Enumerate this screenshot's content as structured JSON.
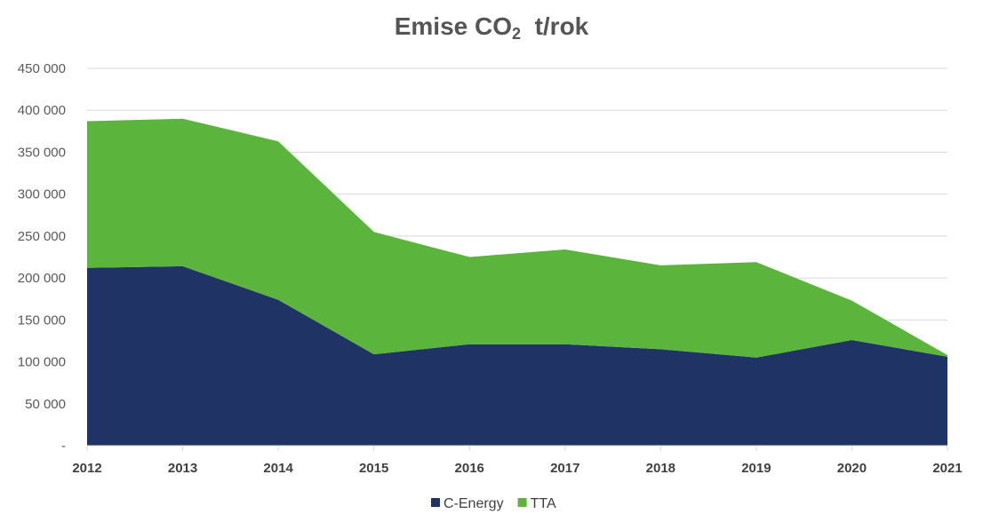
{
  "chart_data": {
    "type": "area",
    "stacked": true,
    "title": {
      "main": "Emise CO",
      "sub": "2",
      "suffix": "t/rok"
    },
    "xlabel": "",
    "ylabel": "",
    "x": [
      "2012",
      "2013",
      "2014",
      "2015",
      "2016",
      "2017",
      "2018",
      "2019",
      "2020",
      "2021"
    ],
    "y_ticks": [
      "-",
      "50 000",
      "100 000",
      "150 000",
      "200 000",
      "250 000",
      "300 000",
      "350 000",
      "400 000",
      "450 000"
    ],
    "y_tick_values": [
      0,
      50000,
      100000,
      150000,
      200000,
      250000,
      300000,
      350000,
      400000,
      450000
    ],
    "ylim": [
      0,
      450000
    ],
    "grid": true,
    "legend_position": "bottom",
    "series": [
      {
        "name": "C-Energy",
        "color": "#1f3464",
        "values": [
          212000,
          214000,
          174000,
          109000,
          121000,
          121000,
          115000,
          105000,
          126000,
          106000
        ]
      },
      {
        "name": "TTA",
        "color": "#5bb43b",
        "values": [
          175000,
          176000,
          189000,
          146000,
          104000,
          113000,
          100000,
          114000,
          47000,
          2000
        ]
      }
    ]
  }
}
